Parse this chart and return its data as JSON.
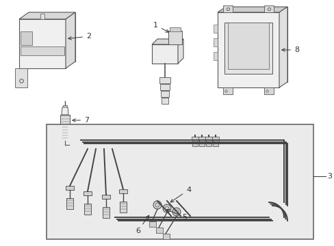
{
  "background_color": "#ffffff",
  "line_color": "#555555",
  "label_color": "#333333",
  "wire_bg": "#e8e8e8",
  "box_bg": "#f2f2f2",
  "fig_w": 4.89,
  "fig_h": 3.6,
  "dpi": 100
}
